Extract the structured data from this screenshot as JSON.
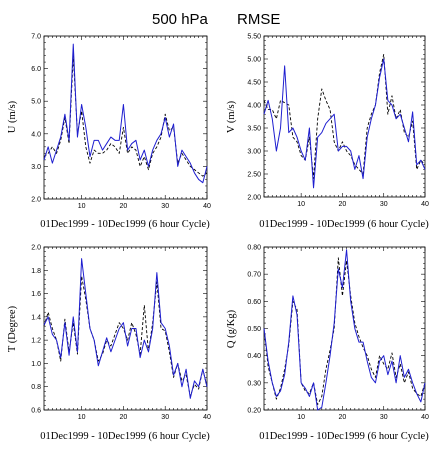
{
  "figure": {
    "title_left": "500 hPa",
    "title_right": "RMSE"
  },
  "colors": {
    "series_solid": "#1f1fd0",
    "series_dashed": "#000000",
    "axis": "#000000"
  },
  "chart_data": [
    {
      "type": "line",
      "xlabel": "01Dec1999 - 10Dec1999 (6 hour Cycle)",
      "ylabel": "U (m/s)",
      "xlim": [
        1,
        40
      ],
      "ylim": [
        2.0,
        7.0
      ],
      "xticks": [
        10,
        20,
        30,
        40
      ],
      "yticks": [
        2.0,
        3.0,
        4.0,
        5.0,
        6.0,
        7.0
      ],
      "ytick_labels": [
        "2.0",
        "3.0",
        "4.0",
        "5.0",
        "6.0",
        "7.0"
      ],
      "x": [
        1,
        2,
        3,
        4,
        5,
        6,
        7,
        8,
        9,
        10,
        11,
        12,
        13,
        14,
        15,
        16,
        17,
        18,
        19,
        20,
        21,
        22,
        23,
        24,
        25,
        26,
        27,
        28,
        29,
        30,
        31,
        32,
        33,
        34,
        35,
        36,
        37,
        38,
        39,
        40
      ],
      "series": [
        {
          "style": "solid",
          "values": [
            3.2,
            3.6,
            3.1,
            3.5,
            3.9,
            4.6,
            3.8,
            6.75,
            3.9,
            4.9,
            4.2,
            3.3,
            3.8,
            3.8,
            3.5,
            3.7,
            3.9,
            3.8,
            3.8,
            4.9,
            3.5,
            3.7,
            3.8,
            3.2,
            3.5,
            3.0,
            3.5,
            3.8,
            4.0,
            4.5,
            3.9,
            4.3,
            3.0,
            3.5,
            3.3,
            3.1,
            2.8,
            2.6,
            2.5,
            3.0
          ]
        },
        {
          "style": "dashed",
          "values": [
            3.3,
            3.4,
            3.6,
            3.4,
            3.8,
            4.5,
            3.7,
            6.4,
            4.0,
            4.7,
            3.6,
            3.1,
            3.5,
            3.4,
            3.4,
            3.5,
            3.7,
            3.6,
            3.4,
            4.2,
            3.4,
            3.6,
            3.5,
            3.0,
            3.3,
            2.9,
            3.4,
            3.6,
            3.9,
            4.6,
            4.1,
            4.2,
            3.1,
            3.4,
            3.2,
            3.0,
            2.9,
            2.8,
            2.7,
            2.8
          ]
        }
      ]
    },
    {
      "type": "line",
      "xlabel": "01Dec1999 - 10Dec1999 (6 hour Cycle)",
      "ylabel": "V (m/s)",
      "xlim": [
        1,
        40
      ],
      "ylim": [
        2.0,
        5.5
      ],
      "xticks": [
        10,
        20,
        30,
        40
      ],
      "yticks": [
        2.0,
        2.5,
        3.0,
        3.5,
        4.0,
        4.5,
        5.0,
        5.5
      ],
      "ytick_labels": [
        "2.00",
        "2.50",
        "3.00",
        "3.50",
        "4.00",
        "4.50",
        "5.00",
        "5.50"
      ],
      "x": [
        1,
        2,
        3,
        4,
        5,
        6,
        7,
        8,
        9,
        10,
        11,
        12,
        13,
        14,
        15,
        16,
        17,
        18,
        19,
        20,
        21,
        22,
        23,
        24,
        25,
        26,
        27,
        28,
        29,
        30,
        31,
        32,
        33,
        34,
        35,
        36,
        37,
        38,
        39,
        40
      ],
      "series": [
        {
          "style": "solid",
          "values": [
            3.8,
            4.1,
            3.7,
            3.0,
            3.5,
            4.85,
            3.4,
            3.5,
            3.3,
            3.0,
            2.8,
            3.5,
            2.2,
            3.3,
            3.4,
            3.6,
            3.7,
            3.8,
            3.0,
            3.1,
            3.1,
            3.0,
            2.6,
            2.9,
            2.4,
            3.3,
            3.7,
            4.0,
            4.6,
            5.0,
            4.1,
            4.0,
            3.7,
            3.8,
            3.5,
            3.2,
            3.85,
            2.7,
            2.8,
            2.6
          ]
        },
        {
          "style": "dashed",
          "values": [
            4.1,
            3.9,
            3.9,
            3.7,
            4.1,
            4.05,
            4.0,
            3.3,
            3.2,
            2.9,
            2.8,
            3.3,
            2.4,
            3.7,
            4.35,
            4.1,
            3.9,
            3.2,
            3.0,
            3.2,
            3.0,
            2.9,
            2.7,
            2.6,
            2.5,
            3.5,
            3.8,
            4.0,
            4.7,
            5.1,
            3.8,
            4.2,
            3.7,
            3.9,
            3.4,
            3.3,
            3.65,
            2.6,
            2.8,
            2.7
          ]
        }
      ]
    },
    {
      "type": "line",
      "xlabel": "01Dec1999 - 10Dec1999 (6 hour Cycle)",
      "ylabel": "T (Degree)",
      "xlim": [
        1,
        40
      ],
      "ylim": [
        0.6,
        2.0
      ],
      "xticks": [
        10,
        20,
        30,
        40
      ],
      "yticks": [
        0.6,
        0.8,
        1.0,
        1.2,
        1.4,
        1.6,
        1.8,
        2.0
      ],
      "ytick_labels": [
        "0.6",
        "0.8",
        "1.0",
        "1.2",
        "1.4",
        "1.6",
        "1.8",
        "2.0"
      ],
      "x": [
        1,
        2,
        3,
        4,
        5,
        6,
        7,
        8,
        9,
        10,
        11,
        12,
        13,
        14,
        15,
        16,
        17,
        18,
        19,
        20,
        21,
        22,
        23,
        24,
        25,
        26,
        27,
        28,
        29,
        30,
        31,
        32,
        33,
        34,
        35,
        36,
        37,
        38,
        39,
        40
      ],
      "series": [
        {
          "style": "solid",
          "values": [
            1.33,
            1.4,
            1.25,
            1.2,
            1.05,
            1.35,
            1.07,
            1.4,
            1.1,
            1.9,
            1.6,
            1.3,
            1.2,
            0.98,
            1.1,
            1.22,
            1.1,
            1.2,
            1.3,
            1.35,
            1.15,
            1.3,
            1.3,
            1.05,
            1.2,
            1.1,
            1.3,
            1.78,
            1.35,
            1.3,
            1.15,
            0.9,
            1.0,
            0.8,
            0.95,
            0.7,
            0.85,
            0.8,
            0.95,
            0.8
          ]
        },
        {
          "style": "dashed",
          "values": [
            1.32,
            1.44,
            1.3,
            1.2,
            1.02,
            1.38,
            1.1,
            1.35,
            1.08,
            1.75,
            1.55,
            1.3,
            1.2,
            1.02,
            1.08,
            1.2,
            1.15,
            1.25,
            1.35,
            1.3,
            1.2,
            1.35,
            1.25,
            1.08,
            1.5,
            1.1,
            1.35,
            1.7,
            1.3,
            1.28,
            1.1,
            0.88,
            1.0,
            0.85,
            0.9,
            0.72,
            0.82,
            0.78,
            0.95,
            0.8
          ]
        }
      ]
    },
    {
      "type": "line",
      "xlabel": "01Dec1999 - 10Dec1999 (6 hour Cycle)",
      "ylabel": "Q (g/Kg)",
      "xlim": [
        1,
        40
      ],
      "ylim": [
        0.2,
        0.8
      ],
      "xticks": [
        10,
        20,
        30,
        40
      ],
      "yticks": [
        0.2,
        0.3,
        0.4,
        0.5,
        0.6,
        0.7,
        0.8
      ],
      "ytick_labels": [
        "0.20",
        "0.30",
        "0.40",
        "0.50",
        "0.60",
        "0.70",
        "0.80"
      ],
      "x": [
        1,
        2,
        3,
        4,
        5,
        6,
        7,
        8,
        9,
        10,
        11,
        12,
        13,
        14,
        15,
        16,
        17,
        18,
        19,
        20,
        21,
        22,
        23,
        24,
        25,
        26,
        27,
        28,
        29,
        30,
        31,
        32,
        33,
        34,
        35,
        36,
        37,
        38,
        39,
        40
      ],
      "series": [
        {
          "style": "solid",
          "values": [
            0.5,
            0.38,
            0.3,
            0.25,
            0.27,
            0.33,
            0.45,
            0.62,
            0.55,
            0.3,
            0.28,
            0.25,
            0.3,
            0.2,
            0.21,
            0.3,
            0.4,
            0.52,
            0.72,
            0.65,
            0.79,
            0.6,
            0.5,
            0.45,
            0.45,
            0.38,
            0.32,
            0.3,
            0.38,
            0.4,
            0.33,
            0.38,
            0.3,
            0.4,
            0.32,
            0.35,
            0.3,
            0.26,
            0.23,
            0.3
          ]
        },
        {
          "style": "dashed",
          "values": [
            0.5,
            0.36,
            0.3,
            0.24,
            0.28,
            0.35,
            0.44,
            0.6,
            0.57,
            0.3,
            0.27,
            0.26,
            0.3,
            0.22,
            0.25,
            0.35,
            0.42,
            0.5,
            0.76,
            0.62,
            0.75,
            0.62,
            0.52,
            0.47,
            0.43,
            0.4,
            0.35,
            0.32,
            0.4,
            0.37,
            0.35,
            0.41,
            0.32,
            0.37,
            0.3,
            0.34,
            0.28,
            0.26,
            0.25,
            0.3
          ]
        }
      ]
    }
  ]
}
